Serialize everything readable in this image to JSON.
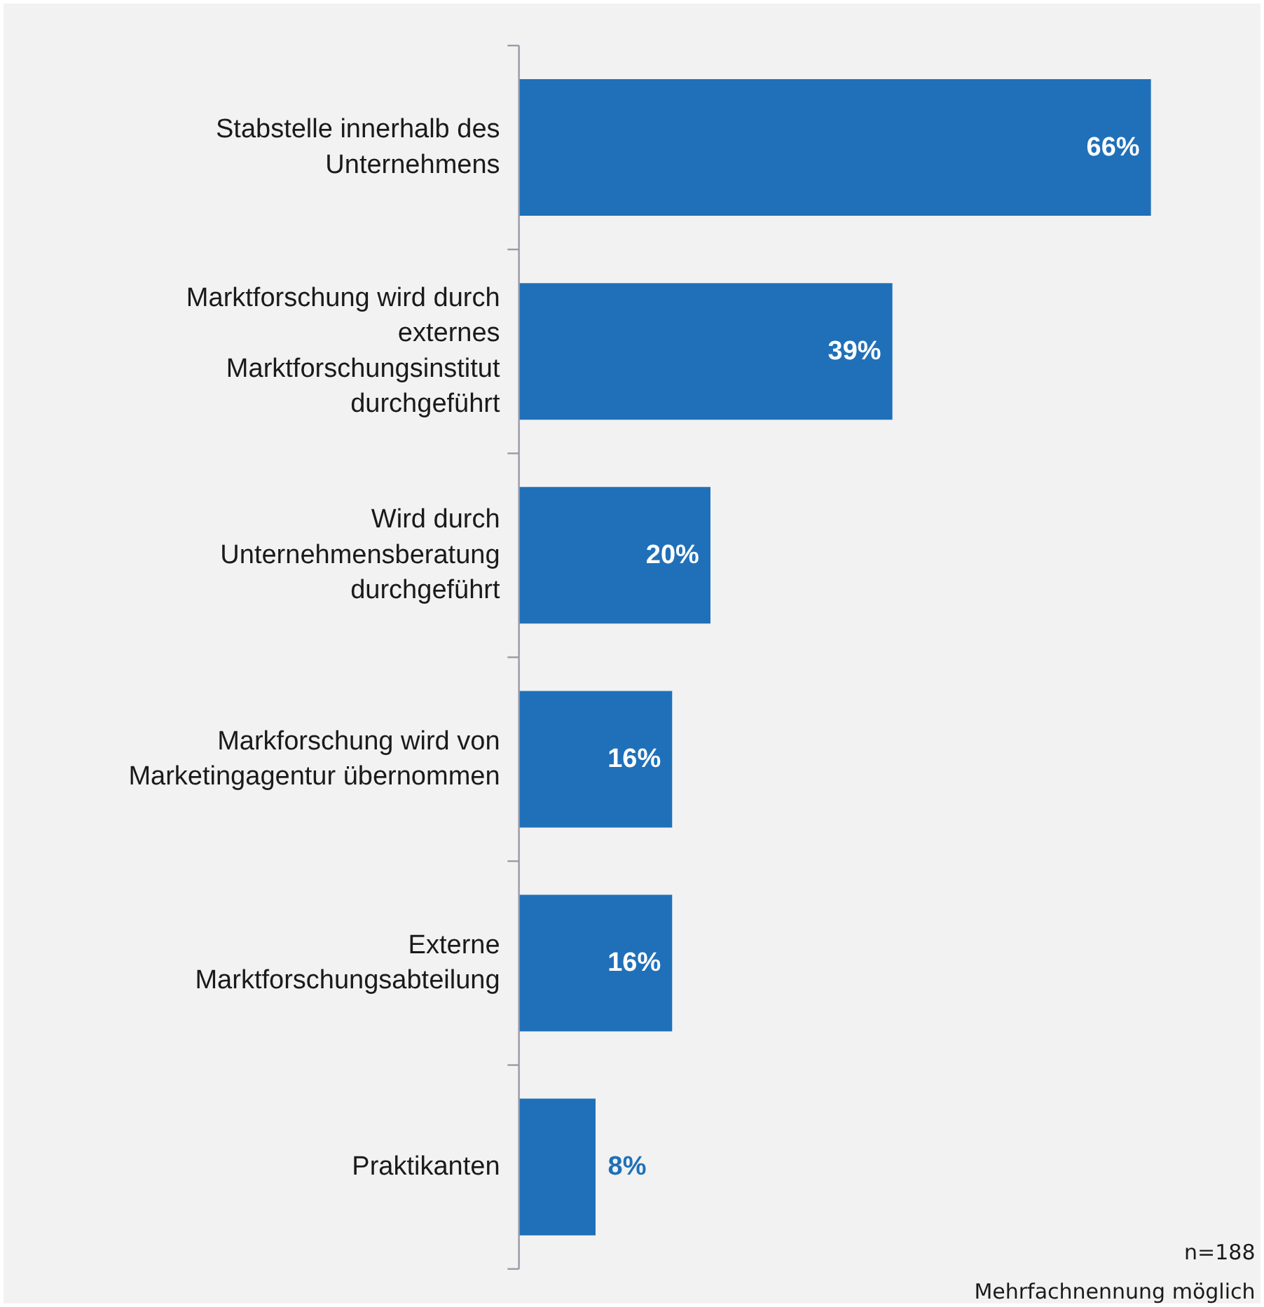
{
  "chart_data": {
    "type": "bar",
    "orientation": "horizontal",
    "categories": [
      "Stabstelle innerhalb des Unternehmens",
      "Marktforschung wird durch externes Marktforschungsinstitut durchgeführt",
      "Wird durch Unternehmensberatung durchgeführt",
      "Markforschung wird von Marketingagentur übernommen",
      "Externe Marktforschungsabteilung",
      "Praktikanten"
    ],
    "values": [
      66,
      39,
      20,
      16,
      16,
      8
    ],
    "value_labels": [
      "66%",
      "39%",
      "20%",
      "16%",
      "16%",
      "8%"
    ],
    "color": "#1f70b8",
    "grid": false,
    "annotations": [
      "n=188",
      "Mehrfachnennung möglich"
    ]
  }
}
